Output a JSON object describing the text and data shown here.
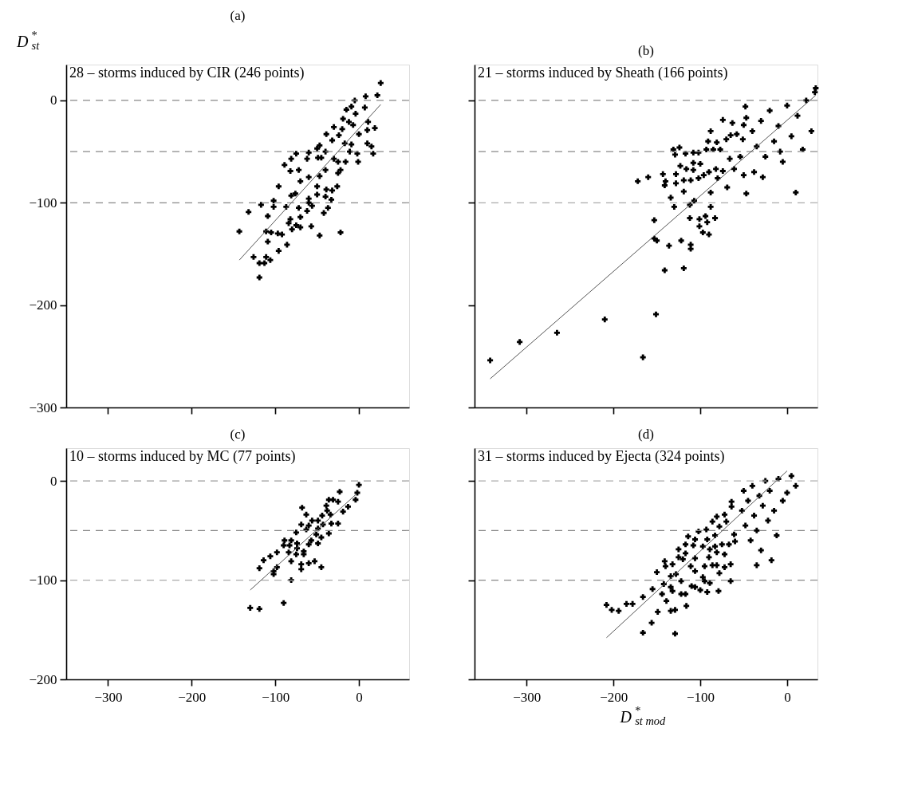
{
  "chart_data": [
    {
      "type": "scatter",
      "title": "(a)",
      "subtitle": "28 – storms induced by CIR (246 points)",
      "ylabel": "D$^{*}$$_{st}$",
      "xlim": [
        -350,
        60
      ],
      "ylim": [
        -300,
        35
      ],
      "xticks": [
        -300,
        -200,
        -100,
        0
      ],
      "yticks": [
        0,
        -100,
        -200,
        -300
      ],
      "tick_labels": "y",
      "grid": false,
      "ref_lines": [
        {
          "axis": "y",
          "value": 0,
          "color": "#888888",
          "line_style": "dashed"
        },
        {
          "axis": "y",
          "value": -50,
          "color": "#888888",
          "line_style": "dashed"
        },
        {
          "axis": "y",
          "value": -100,
          "color": "#888888",
          "line_style": "dashed"
        }
      ],
      "series": [
        {
          "type": "scatter",
          "marker": "cross",
          "color": "#000000",
          "x": [
            26,
            22,
            8,
            -5,
            7,
            -15,
            -9,
            -4,
            -12,
            -7,
            11,
            19,
            10,
            0,
            -19,
            -30,
            -20,
            -39,
            -24,
            -32,
            -17,
            -9,
            -47,
            10,
            15,
            17,
            -2,
            -11,
            -40,
            -50,
            -75,
            -60,
            -62,
            -45,
            -30,
            -25,
            -16,
            -1,
            -81,
            -89,
            -82,
            -49,
            -40,
            -47,
            -60,
            -25,
            -22,
            -72,
            -70,
            -50,
            -39,
            -26,
            -32,
            -96,
            -50,
            -76,
            -81,
            -60,
            -40,
            -33,
            -60,
            -56,
            -62,
            -72,
            -87,
            -102,
            -102,
            -117,
            -132,
            -109,
            -37,
            -42,
            -70,
            -82,
            -84,
            -75,
            -80,
            -70,
            -57,
            -47,
            -22,
            -143,
            -111,
            -105,
            -97,
            -92,
            -109,
            -86,
            -96,
            -126,
            -111,
            -119,
            -113,
            -106,
            -119
          ],
          "values": [
            17,
            5,
            4,
            0,
            -7,
            -9,
            -6,
            -13,
            -21,
            -24,
            -21,
            -27,
            -29,
            -33,
            -18,
            -26,
            -28,
            -33,
            -34,
            -39,
            -42,
            -43,
            -44,
            -42,
            -45,
            -52,
            -52,
            -50,
            -50,
            -47,
            -52,
            -51,
            -57,
            -56,
            -57,
            -60,
            -60,
            -60,
            -57,
            -63,
            -69,
            -56,
            -68,
            -74,
            -75,
            -71,
            -68,
            -68,
            -79,
            -84,
            -87,
            -84,
            -88,
            -84,
            -92,
            -91,
            -93,
            -96,
            -94,
            -97,
            -100,
            -103,
            -108,
            -105,
            -104,
            -98,
            -104,
            -102,
            -109,
            -113,
            -105,
            -110,
            -114,
            -116,
            -120,
            -122,
            -126,
            -124,
            -123,
            -132,
            -129,
            -128,
            -128,
            -129,
            -130,
            -131,
            -138,
            -141,
            -147,
            -153,
            -153,
            -159,
            -159,
            -156,
            -173
          ]
        },
        {
          "type": "line",
          "color": "#555555",
          "x": [
            -143,
            26
          ],
          "values": [
            -156,
            -4
          ]
        }
      ]
    },
    {
      "type": "scatter",
      "title": "(b)",
      "subtitle": "21 – storms  induced by Sheath (166 points)",
      "xlim": [
        -360,
        35
      ],
      "ylim": [
        -300,
        35
      ],
      "xticks": [
        -300,
        -200,
        -100,
        0
      ],
      "yticks": [
        0,
        -100,
        -200,
        -300
      ],
      "tick_labels": false,
      "grid": false,
      "ref_lines": [
        {
          "axis": "y",
          "value": 0,
          "color": "#888888",
          "line_style": "dashed"
        },
        {
          "axis": "y",
          "value": -50,
          "color": "#888888",
          "line_style": "dashed"
        },
        {
          "axis": "y",
          "value": -100,
          "color": "#aaaaaa",
          "line_style": "dashed"
        }
      ],
      "series": [
        {
          "type": "scatter",
          "marker": "cross",
          "color": "#000000",
          "x": [
            -342,
            -308,
            -265,
            -210,
            -151,
            -166,
            -172,
            -160,
            -143,
            -140,
            -141,
            -128,
            -128,
            -119,
            -111,
            -119,
            -134,
            -130,
            -153,
            -153,
            -150,
            -136,
            -122,
            -111,
            -111,
            -141,
            -119,
            -112,
            -107,
            -112,
            -101,
            -94,
            -83,
            -92,
            -101,
            -97,
            -90,
            -88,
            -88,
            -131,
            -124,
            -129,
            -117,
            -108,
            -102,
            -123,
            -116,
            -108,
            -108,
            -100,
            -102,
            -96,
            -93,
            -85,
            -77,
            -91,
            -81,
            -88,
            -74,
            -63,
            -70,
            -65,
            -58,
            -50,
            -47,
            -51,
            -54,
            -66,
            -74,
            -80,
            -69,
            -82,
            -90,
            -61,
            -50,
            -47,
            -48,
            -40,
            -35,
            -30,
            -25,
            -20,
            -15,
            -10,
            -5,
            0,
            5,
            10,
            12,
            18,
            22,
            28,
            32,
            33,
            -38,
            -28,
            -8
          ],
          "values": [
            -254,
            -236,
            -227,
            -214,
            -209,
            -251,
            -79,
            -75,
            -72,
            -79,
            -83,
            -81,
            -72,
            -78,
            -78,
            -89,
            -95,
            -104,
            -117,
            -135,
            -137,
            -142,
            -137,
            -141,
            -145,
            -166,
            -164,
            -102,
            -98,
            -115,
            -116,
            -113,
            -115,
            -119,
            -123,
            -129,
            -131,
            -104,
            -90,
            -48,
            -46,
            -53,
            -52,
            -51,
            -51,
            -64,
            -67,
            -61,
            -68,
            -62,
            -76,
            -73,
            -48,
            -48,
            -48,
            -40,
            -41,
            -30,
            -19,
            -22,
            -38,
            -34,
            -33,
            -24,
            -17,
            -38,
            -55,
            -57,
            -69,
            -76,
            -85,
            -67,
            -70,
            -67,
            -73,
            -91,
            -6,
            -30,
            -45,
            -20,
            -55,
            -10,
            -40,
            -25,
            -60,
            -5,
            -35,
            -90,
            -15,
            -48,
            0,
            -30,
            8,
            12,
            -70,
            -75,
            -50
          ]
        },
        {
          "type": "line",
          "color": "#555555",
          "x": [
            -342,
            33
          ],
          "values": [
            -272,
            5
          ]
        }
      ]
    },
    {
      "type": "scatter",
      "title": "(c)",
      "subtitle": "10 – storms  induced by MC (77 points)",
      "xlim": [
        -350,
        60
      ],
      "ylim": [
        -200,
        33
      ],
      "xticks": [
        -300,
        -200,
        -100,
        0
      ],
      "yticks": [
        0,
        -100,
        -200
      ],
      "grid": false,
      "ref_lines": [
        {
          "axis": "y",
          "value": 0,
          "color": "#999999",
          "line_style": "dashed"
        },
        {
          "axis": "y",
          "value": -50,
          "color": "#888888",
          "line_style": "dashed"
        },
        {
          "axis": "y",
          "value": -100,
          "color": "#aaaaaa",
          "line_style": "dashed"
        }
      ],
      "series": [
        {
          "type": "scatter",
          "marker": "cross",
          "color": "#000000",
          "x": [
            0,
            -2,
            -4,
            -23,
            -31,
            -25,
            -36,
            -13,
            -19,
            -39,
            -38,
            -44,
            -34,
            -68,
            -63,
            -56,
            -49,
            -43,
            -33,
            -25,
            -69,
            -60,
            -63,
            -75,
            -49,
            -51,
            -36,
            -45,
            -57,
            -60,
            -49,
            -89,
            -81,
            -74,
            -90,
            -83,
            -74,
            -84,
            -75,
            -66,
            -66,
            -98,
            -106,
            -114,
            -119,
            -102,
            -98,
            -102,
            -81,
            -69,
            -69,
            -60,
            -53,
            -45,
            -81,
            -90,
            -130,
            -119
          ],
          "values": [
            -4,
            -12,
            -19,
            -11,
            -19,
            -21,
            -19,
            -26,
            -31,
            -25,
            -30,
            -35,
            -34,
            -27,
            -34,
            -40,
            -40,
            -44,
            -43,
            -43,
            -44,
            -45,
            -49,
            -52,
            -48,
            -54,
            -53,
            -57,
            -60,
            -64,
            -63,
            -60,
            -60,
            -63,
            -65,
            -65,
            -68,
            -72,
            -74,
            -71,
            -74,
            -72,
            -76,
            -80,
            -88,
            -91,
            -87,
            -94,
            -81,
            -84,
            -89,
            -83,
            -81,
            -87,
            -100,
            -123,
            -128,
            -129
          ]
        },
        {
          "type": "line",
          "color": "#555555",
          "x": [
            -130,
            -4
          ],
          "values": [
            -110,
            -14
          ]
        }
      ]
    },
    {
      "type": "scatter",
      "title": "(d)",
      "subtitle": "31 – storms  induced by Ejecta (324 points)",
      "xlabel": "D$^{*}$$_{st mod}$",
      "xlim": [
        -360,
        35
      ],
      "ylim": [
        -200,
        33
      ],
      "xticks": [
        -300,
        -200,
        -100,
        0
      ],
      "yticks": [
        0,
        -100,
        -200
      ],
      "tick_labels": "x",
      "grid": false,
      "ref_lines": [
        {
          "axis": "y",
          "value": 0,
          "color": "#aaaaaa",
          "line_style": "dashed"
        },
        {
          "axis": "y",
          "value": -50,
          "color": "#888888",
          "line_style": "dashed"
        },
        {
          "axis": "y",
          "value": -100,
          "color": "#888888",
          "line_style": "dashed"
        }
      ],
      "series": [
        {
          "type": "scatter",
          "marker": "cross",
          "color": "#000000",
          "x": [
            -208,
            -202,
            -194,
            -185,
            -178,
            -166,
            -155,
            -150,
            -141,
            -140,
            -132,
            -142,
            -134,
            -144,
            -139,
            -132,
            -122,
            -117,
            -149,
            -134,
            -129,
            -116,
            -156,
            -166,
            -129,
            -134,
            -128,
            -125,
            -120,
            -125,
            -117,
            -122,
            -110,
            -106,
            -97,
            -95,
            -92,
            -100,
            -89,
            -79,
            -106,
            -111,
            -106,
            -95,
            -86,
            -78,
            -81,
            -72,
            -65,
            -65,
            -117,
            -108,
            -114,
            -106,
            -102,
            -93,
            -92,
            -89,
            -81,
            -83,
            -75,
            -72,
            -67,
            -83,
            -78,
            -86,
            -81,
            -72,
            -70,
            -64,
            -64,
            -61,
            -60,
            -97,
            -90,
            -52,
            -50,
            -48,
            -45,
            -42,
            -40,
            -38,
            -35,
            -32,
            -30,
            -28,
            -25,
            -22,
            -20,
            -15,
            -12,
            -10,
            -5,
            0,
            5,
            10,
            -18,
            -35
          ],
          "values": [
            -125,
            -130,
            -131,
            -124,
            -124,
            -117,
            -109,
            -92,
            -81,
            -86,
            -84,
            -104,
            -107,
            -114,
            -121,
            -111,
            -114,
            -114,
            -132,
            -131,
            -130,
            -126,
            -143,
            -153,
            -154,
            -96,
            -94,
            -77,
            -79,
            -69,
            -73,
            -101,
            -106,
            -91,
            -97,
            -101,
            -112,
            -110,
            -103,
            -111,
            -107,
            -86,
            -78,
            -86,
            -85,
            -93,
            -85,
            -87,
            -84,
            -101,
            -64,
            -65,
            -56,
            -59,
            -51,
            -49,
            -59,
            -69,
            -72,
            -66,
            -64,
            -74,
            -64,
            -55,
            -46,
            -41,
            -36,
            -34,
            -41,
            -26,
            -21,
            -54,
            -61,
            -66,
            -77,
            -30,
            -10,
            -45,
            -20,
            -60,
            -5,
            -35,
            -50,
            -15,
            -70,
            -25,
            0,
            -40,
            -10,
            -30,
            -55,
            2,
            -20,
            -12,
            5,
            -5,
            -80,
            -85
          ]
        },
        {
          "type": "line",
          "color": "#555555",
          "x": [
            -208,
            0
          ],
          "values": [
            -158,
            10
          ]
        }
      ]
    }
  ]
}
